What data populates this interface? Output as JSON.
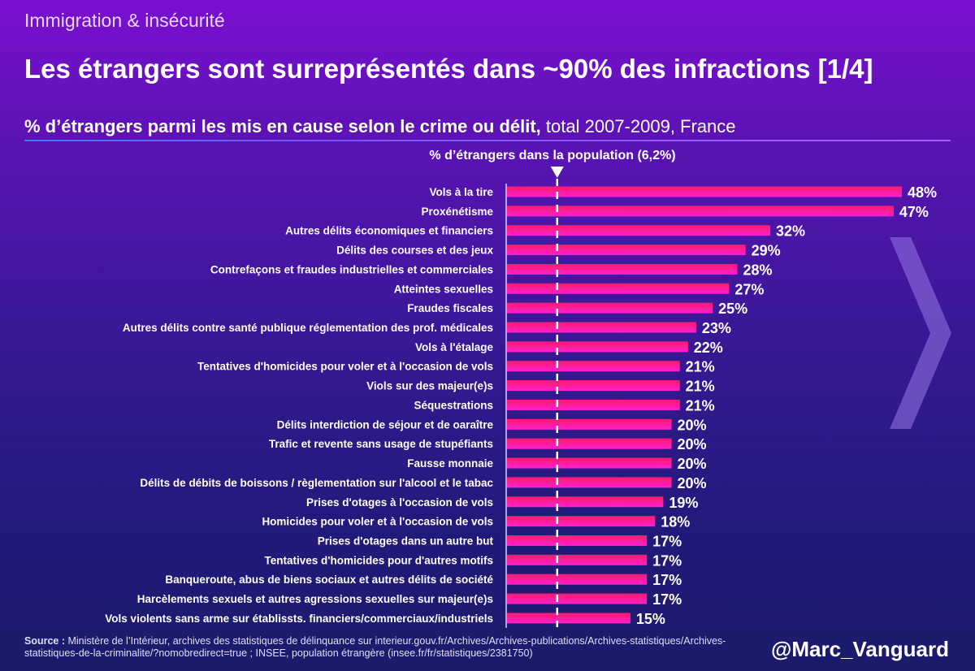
{
  "header": {
    "supertitle": "Immigration & insécurité",
    "title": "Les étrangers sont surreprésentés dans ~90% des infractions [1/4]",
    "subtitle_bold": "% d’étrangers parmi les mis en cause selon le crime ou délit,",
    "subtitle_rest": " total 2007-2009, France"
  },
  "reference": {
    "label": "% d’étrangers dans la population (6,2%)",
    "value": 6.2
  },
  "chart_data": {
    "type": "bar",
    "orientation": "horizontal",
    "categories": [
      "Vols à la tire",
      "Proxénétisme",
      "Autres délits économiques et financiers",
      "Délits des courses et des jeux",
      "Contrefaçons et fraudes industrielles et commerciales",
      "Atteintes sexuelles",
      "Fraudes fiscales",
      "Autres délits contre santé publique réglementation des prof. médicales",
      "Vols à l'étalage",
      "Tentatives d'homicides pour voler et à l'occasion de vols",
      "Viols sur des majeur(e)s",
      "Séquestrations",
      "Délits interdiction de séjour et de oaraître",
      "Trafic et revente sans usage de stupéfiants",
      "Fausse monnaie",
      "Délits de débits de boissons / règlementation sur l'alcool et le tabac",
      "Prises d'otages à l'occasion de vols",
      "Homicides pour voler et à l'occasion de vols",
      "Prises d'otages dans un autre but",
      "Tentatives d'homicides pour d'autres motifs",
      "Banqueroute, abus de biens sociaux et autres délits de société",
      "Harcèlements sexuels et autres agressions sexuelles sur majeur(e)s",
      "Vols violents sans arme sur établissts. financiers/commerciaux/industriels"
    ],
    "values": [
      48,
      47,
      32,
      29,
      28,
      27,
      25,
      23,
      22,
      21,
      21,
      21,
      20,
      20,
      20,
      20,
      19,
      18,
      17,
      17,
      17,
      17,
      15
    ],
    "value_labels": [
      "48%",
      "47%",
      "32%",
      "29%",
      "28%",
      "27%",
      "25%",
      "23%",
      "22%",
      "21%",
      "21%",
      "21%",
      "20%",
      "20%",
      "20%",
      "20%",
      "19%",
      "18%",
      "17%",
      "17%",
      "17%",
      "17%",
      "15%"
    ],
    "xlim": [
      0,
      48
    ],
    "colors": {
      "bar_top": "#ff1a6b",
      "bar_bottom": "#ff1fd0",
      "reference_line": "#ffffff"
    }
  },
  "footer": {
    "source_label": "Source :",
    "source_text": " Ministère de l’Intérieur, archives des statistiques de délinquance sur interieur.gouv.fr/Archives/Archives-publications/Archives-statistiques/Archives-statistiques-de-la-criminalite/?nomobredirect=true ; INSEE, population étrangère (insee.fr/fr/statistiques/2381750)",
    "handle": "@Marc_Vanguard"
  }
}
